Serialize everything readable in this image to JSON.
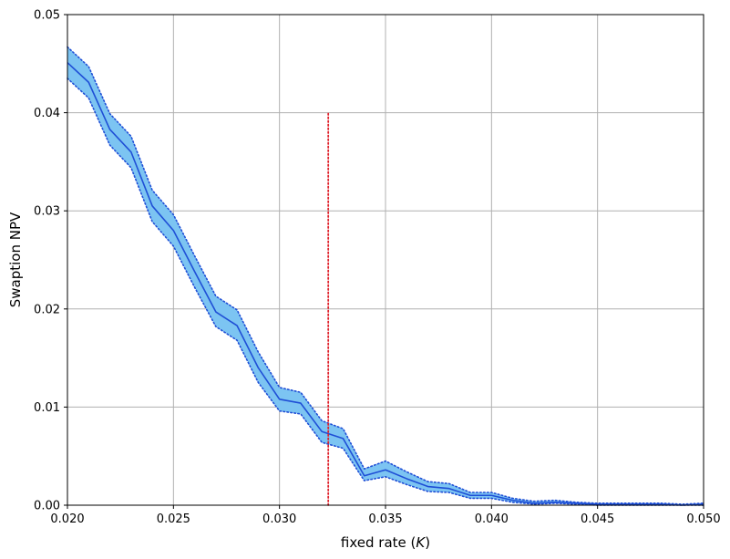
{
  "chart_data": {
    "type": "line",
    "title": "",
    "xlabel": "fixed rate",
    "xlabel_symbol": "K",
    "ylabel": "Swaption NPV",
    "xlim": [
      0.02,
      0.05
    ],
    "ylim": [
      0.0,
      0.05
    ],
    "grid": true,
    "legend": "none",
    "x_ticks": [
      "0.020",
      "0.025",
      "0.030",
      "0.035",
      "0.040",
      "0.045",
      "0.050"
    ],
    "y_ticks": [
      "0.00",
      "0.01",
      "0.02",
      "0.03",
      "0.04",
      "0.05"
    ],
    "x": [
      0.02,
      0.021,
      0.022,
      0.023,
      0.024,
      0.025,
      0.026,
      0.027,
      0.028,
      0.029,
      0.03,
      0.031,
      0.032,
      0.033,
      0.034,
      0.035,
      0.036,
      0.037,
      0.038,
      0.039,
      0.04,
      0.041,
      0.042,
      0.043,
      0.044,
      0.045,
      0.046,
      0.047,
      0.048,
      0.049,
      0.05
    ],
    "series": [
      {
        "role": "npv",
        "values": [
          0.0451,
          0.0431,
          0.0383,
          0.036,
          0.0305,
          0.028,
          0.0238,
          0.0197,
          0.0183,
          0.014,
          0.0108,
          0.0104,
          0.0075,
          0.0068,
          0.003,
          0.0036,
          0.0027,
          0.0019,
          0.0017,
          0.001,
          0.001,
          0.0005,
          0.0002,
          0.0003,
          0.0002,
          0.0001,
          0.0001,
          0.0001,
          0.0001,
          0.0,
          0.0001
        ],
        "color": "#1f4fd6"
      },
      {
        "role": "upper-bound",
        "values": [
          0.0467,
          0.0447,
          0.0399,
          0.0376,
          0.0321,
          0.0296,
          0.0254,
          0.0213,
          0.0199,
          0.0156,
          0.012,
          0.0115,
          0.0086,
          0.0078,
          0.0037,
          0.0045,
          0.0034,
          0.0024,
          0.0022,
          0.0013,
          0.0013,
          0.0007,
          0.0004,
          0.0005,
          0.0003,
          0.0002,
          0.0002,
          0.0002,
          0.0002,
          0.0001,
          0.0002
        ],
        "color": "#1f4fd6"
      },
      {
        "role": "lower-bound",
        "values": [
          0.0435,
          0.0415,
          0.0367,
          0.0344,
          0.0289,
          0.0264,
          0.0222,
          0.0182,
          0.0168,
          0.0125,
          0.0096,
          0.0093,
          0.0064,
          0.0058,
          0.0025,
          0.0029,
          0.0021,
          0.0014,
          0.0013,
          0.0007,
          0.0007,
          0.0003,
          0.0001,
          0.0002,
          0.0001,
          0.0,
          0.0,
          0.0,
          0.0,
          0.0,
          0.0
        ],
        "color": "#1f4fd6"
      }
    ],
    "band_color": "#7cc4f2",
    "vertical_line": {
      "x": 0.0323,
      "y_from": 0.0,
      "y_to": 0.04,
      "color": "#e0202a",
      "style": "dotted"
    }
  }
}
